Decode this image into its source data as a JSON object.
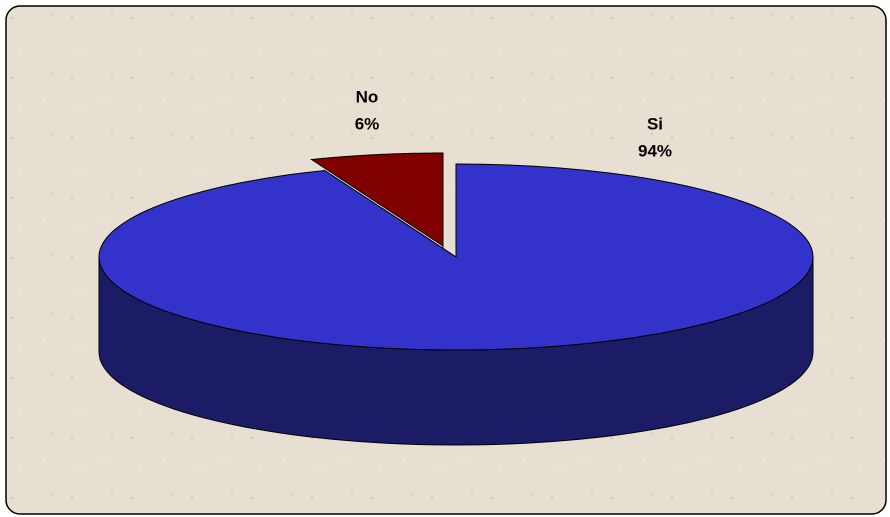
{
  "chart_data": {
    "type": "pie3d",
    "categories": [
      "Si",
      "No"
    ],
    "values": [
      94,
      6
    ],
    "value_labels": [
      "94%",
      "6%"
    ],
    "colors": [
      "#3333cc",
      "#800000"
    ],
    "side_colors": [
      "#1c1c66",
      "#4d0000"
    ],
    "exploded": [
      false,
      true
    ]
  }
}
